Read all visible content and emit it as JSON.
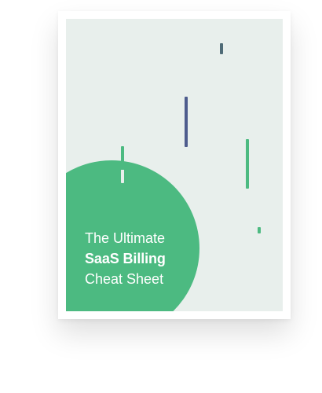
{
  "book": {
    "title_line_1": "The Ultimate",
    "title_line_2": "SaaS Billing",
    "title_line_3": "Cheat Sheet"
  },
  "colors": {
    "cover_background": "#e8efec",
    "accent_green": "#4cba81",
    "accent_navy": "#4e5c8d",
    "accent_slate": "#4f6b77",
    "text": "#ffffff"
  },
  "decor": {
    "icon": "vertical-stripes"
  }
}
